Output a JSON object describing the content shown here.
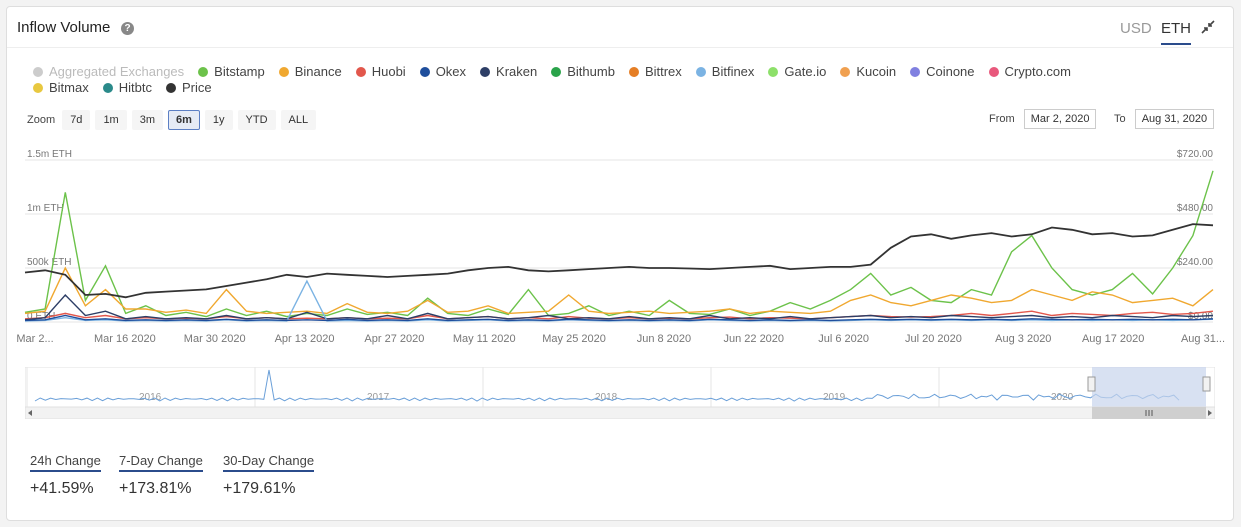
{
  "header": {
    "title": "Inflow Volume",
    "help_icon": "?",
    "unit_usd": "USD",
    "unit_eth": "ETH"
  },
  "legend": [
    {
      "label": "Aggregated Exchanges",
      "color": "#cccccc",
      "enabled": false
    },
    {
      "label": "Bitstamp",
      "color": "#6cc24a"
    },
    {
      "label": "Binance",
      "color": "#f0a830"
    },
    {
      "label": "Huobi",
      "color": "#e2574c"
    },
    {
      "label": "Okex",
      "color": "#1f4e9c"
    },
    {
      "label": "Kraken",
      "color": "#2d3e66"
    },
    {
      "label": "Bithumb",
      "color": "#2aa34a"
    },
    {
      "label": "Bittrex",
      "color": "#e57e25"
    },
    {
      "label": "Bitfinex",
      "color": "#7bb3e3"
    },
    {
      "label": "Gate.io",
      "color": "#8de06a"
    },
    {
      "label": "Kucoin",
      "color": "#f0a050"
    },
    {
      "label": "Coinone",
      "color": "#8080e0"
    },
    {
      "label": "Crypto.com",
      "color": "#e8587c"
    },
    {
      "label": "Bitmax",
      "color": "#e8c840"
    },
    {
      "label": "Hitbtc",
      "color": "#2a8a8a"
    },
    {
      "label": "Price",
      "color": "#333333"
    }
  ],
  "zoom": {
    "label": "Zoom",
    "buttons": [
      "7d",
      "1m",
      "3m",
      "6m",
      "1y",
      "YTD",
      "ALL"
    ],
    "active": "6m"
  },
  "range": {
    "from_label": "From",
    "from": "Mar 2, 2020",
    "to_label": "To",
    "to": "Aug 31, 2020"
  },
  "stats": [
    {
      "label": "24h Change",
      "value": "+41.59%"
    },
    {
      "label": "7-Day Change",
      "value": "+173.81%"
    },
    {
      "label": "30-Day Change",
      "value": "+179.61%"
    }
  ],
  "chart_data": {
    "type": "line",
    "title": "Inflow Volume",
    "y_left": {
      "ticks": [
        "0 ETH",
        "500k ETH",
        "1m ETH",
        "1.5m ETH"
      ],
      "range": [
        0,
        1500000
      ]
    },
    "y_right": {
      "ticks": [
        "$0.00",
        "$240.00",
        "$480.00",
        "$720.00"
      ],
      "range": [
        0,
        720
      ]
    },
    "x_ticks": [
      "Mar 2...",
      "Mar 16 2020",
      "Mar 30 2020",
      "Apr 13 2020",
      "Apr 27 2020",
      "May 11 2020",
      "May 25 2020",
      "Jun 8 2020",
      "Jun 22 2020",
      "Jul 6 2020",
      "Jul 20 2020",
      "Aug 3 2020",
      "Aug 17 2020",
      "Aug 31..."
    ],
    "x_range": [
      "2020-03-02",
      "2020-08-31"
    ],
    "series": [
      {
        "name": "Price",
        "color": "#333333",
        "axis": "right",
        "values": [
          220,
          230,
          210,
          120,
          125,
          110,
          130,
          135,
          140,
          145,
          160,
          175,
          190,
          210,
          200,
          215,
          210,
          205,
          200,
          205,
          210,
          215,
          230,
          240,
          245,
          230,
          225,
          230,
          235,
          240,
          245,
          240,
          240,
          238,
          235,
          240,
          245,
          250,
          235,
          240,
          245,
          245,
          255,
          330,
          380,
          390,
          370,
          385,
          395,
          380,
          390,
          420,
          410,
          390,
          395,
          380,
          385,
          410,
          435,
          430
        ]
      },
      {
        "name": "Bitstamp",
        "color": "#6cc24a",
        "axis": "left",
        "values": [
          90000,
          120000,
          1200000,
          200000,
          520000,
          80000,
          150000,
          60000,
          90000,
          50000,
          120000,
          60000,
          100000,
          50000,
          80000,
          60000,
          120000,
          70000,
          90000,
          60000,
          220000,
          80000,
          60000,
          120000,
          70000,
          300000,
          60000,
          80000,
          150000,
          60000,
          100000,
          60000,
          200000,
          80000,
          70000,
          120000,
          60000,
          100000,
          180000,
          120000,
          200000,
          300000,
          450000,
          250000,
          320000,
          200000,
          180000,
          300000,
          250000,
          650000,
          800000,
          500000,
          300000,
          250000,
          300000,
          450000,
          260000,
          500000,
          800000,
          1400000
        ]
      },
      {
        "name": "Binance",
        "color": "#f0a830",
        "axis": "left",
        "values": [
          80000,
          100000,
          500000,
          150000,
          300000,
          120000,
          120000,
          90000,
          110000,
          80000,
          300000,
          100000,
          80000,
          90000,
          100000,
          80000,
          170000,
          90000,
          80000,
          100000,
          200000,
          90000,
          100000,
          150000,
          80000,
          90000,
          100000,
          250000,
          100000,
          80000,
          90000,
          100000,
          80000,
          90000,
          100000,
          120000,
          80000,
          100000,
          90000,
          80000,
          100000,
          200000,
          250000,
          180000,
          150000,
          200000,
          250000,
          220000,
          180000,
          200000,
          300000,
          250000,
          200000,
          280000,
          250000,
          180000,
          200000,
          220000,
          150000,
          300000
        ]
      },
      {
        "name": "Huobi",
        "color": "#e2574c",
        "axis": "left",
        "values": [
          30000,
          40000,
          80000,
          40000,
          60000,
          30000,
          40000,
          30000,
          35000,
          30000,
          50000,
          30000,
          40000,
          30000,
          35000,
          30000,
          40000,
          30000,
          35000,
          30000,
          60000,
          30000,
          40000,
          50000,
          30000,
          40000,
          30000,
          50000,
          35000,
          30000,
          40000,
          30000,
          35000,
          30000,
          40000,
          45000,
          30000,
          40000,
          35000,
          30000,
          40000,
          50000,
          60000,
          50000,
          45000,
          50000,
          60000,
          80000,
          60000,
          80000,
          100000,
          60000,
          80000,
          70000,
          60000,
          80000,
          90000,
          70000,
          80000,
          100000
        ]
      },
      {
        "name": "Kraken",
        "color": "#2d3e66",
        "axis": "left",
        "values": [
          20000,
          40000,
          250000,
          60000,
          100000,
          30000,
          50000,
          30000,
          40000,
          30000,
          60000,
          30000,
          40000,
          30000,
          90000,
          30000,
          40000,
          30000,
          60000,
          30000,
          80000,
          30000,
          40000,
          50000,
          30000,
          40000,
          60000,
          30000,
          40000,
          30000,
          50000,
          30000,
          40000,
          30000,
          60000,
          30000,
          40000,
          30000,
          50000,
          30000,
          40000,
          50000,
          60000,
          40000,
          50000,
          40000,
          60000,
          50000,
          40000,
          50000,
          60000,
          40000,
          50000,
          40000,
          60000,
          50000,
          40000,
          60000,
          50000,
          60000
        ]
      },
      {
        "name": "Bitfinex",
        "color": "#7bb3e3",
        "axis": "left",
        "values": [
          10000,
          15000,
          40000,
          15000,
          20000,
          10000,
          15000,
          10000,
          15000,
          10000,
          20000,
          10000,
          15000,
          10000,
          380000,
          10000,
          15000,
          10000,
          15000,
          10000,
          20000,
          10000,
          15000,
          20000,
          10000,
          15000,
          10000,
          20000,
          15000,
          10000,
          15000,
          10000,
          15000,
          10000,
          20000,
          15000,
          10000,
          15000,
          10000,
          15000,
          10000,
          15000,
          20000,
          15000,
          20000,
          15000,
          20000,
          15000,
          20000,
          15000,
          20000,
          15000,
          20000,
          15000,
          20000,
          15000,
          20000,
          15000,
          20000,
          25000
        ]
      },
      {
        "name": "Okex",
        "color": "#1f4e9c",
        "axis": "left",
        "values": [
          15000,
          20000,
          60000,
          20000,
          30000,
          15000,
          20000,
          15000,
          20000,
          15000,
          25000,
          15000,
          20000,
          15000,
          20000,
          15000,
          25000,
          15000,
          20000,
          15000,
          30000,
          15000,
          20000,
          25000,
          15000,
          20000,
          15000,
          25000,
          20000,
          15000,
          20000,
          15000,
          20000,
          15000,
          25000,
          20000,
          15000,
          20000,
          15000,
          20000,
          15000,
          20000,
          25000,
          20000,
          25000,
          20000,
          25000,
          20000,
          25000,
          20000,
          30000,
          25000,
          20000,
          25000,
          20000,
          25000,
          20000,
          25000,
          20000,
          30000
        ]
      }
    ],
    "navigator": {
      "x_labels": [
        "2016",
        "2017",
        "2018",
        "2019",
        "2020"
      ]
    }
  }
}
